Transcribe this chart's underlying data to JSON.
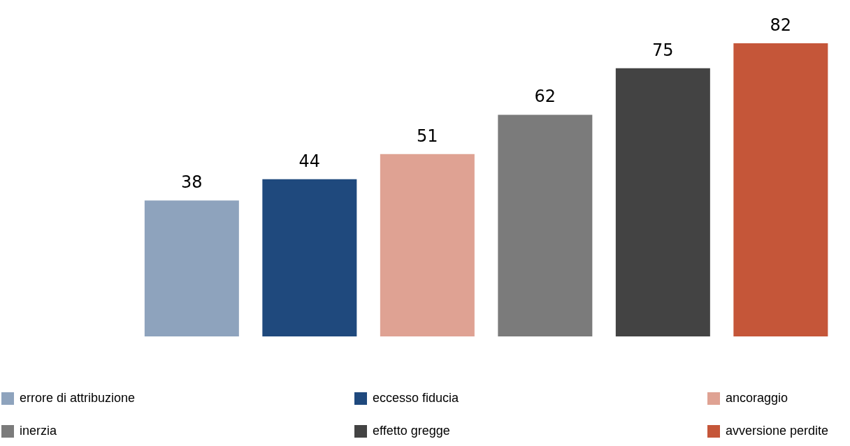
{
  "chart_data": {
    "type": "bar",
    "categories": [
      null,
      null,
      null,
      null,
      null,
      null
    ],
    "series": [
      {
        "name": "errore di attribuzione",
        "color": "#8ea3bd",
        "values": [
          38,
          null,
          null,
          null,
          null,
          null
        ]
      },
      {
        "name": "eccesso fiducia",
        "color": "#1f497d",
        "values": [
          null,
          44,
          null,
          null,
          null,
          null
        ]
      },
      {
        "name": "ancoraggio",
        "color": "#dfa293",
        "values": [
          null,
          null,
          51,
          null,
          null,
          null
        ]
      },
      {
        "name": "inerzia",
        "color": "#7b7b7b",
        "values": [
          null,
          null,
          null,
          62,
          null,
          null
        ]
      },
      {
        "name": "effetto gregge",
        "color": "#434343",
        "values": [
          null,
          null,
          null,
          null,
          75,
          null
        ]
      },
      {
        "name": "avversione perdite",
        "color": "#c55639",
        "values": [
          null,
          null,
          null,
          null,
          null,
          82
        ]
      }
    ],
    "stacked": true,
    "data_labels": true,
    "legend": "bottom",
    "grid": false
  }
}
